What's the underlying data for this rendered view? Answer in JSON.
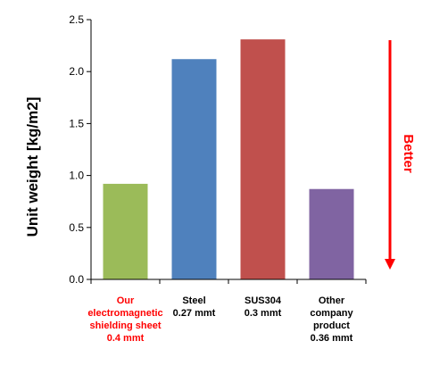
{
  "chart_data": {
    "type": "bar",
    "ylabel": "Unit weight [kg/m2]",
    "ylim": [
      0,
      2.5
    ],
    "yticks": [
      "0.0",
      "0.5",
      "1.0",
      "1.5",
      "2.0",
      "2.5"
    ],
    "grid": false,
    "categories": [
      {
        "lines": [
          "Our",
          "electromagnetic",
          "shielding sheet",
          "0.4 mmt"
        ],
        "label_color": "#ff0000",
        "value": 0.92,
        "color": "#9bbb59"
      },
      {
        "lines": [
          "Steel",
          "0.27 mmt"
        ],
        "label_color": "#000000",
        "value": 2.12,
        "color": "#4f81bd"
      },
      {
        "lines": [
          "SUS304",
          "0.3 mmt"
        ],
        "label_color": "#000000",
        "value": 2.31,
        "color": "#c0504d"
      },
      {
        "lines": [
          "Other",
          "company",
          "product",
          "0.36 mmt"
        ],
        "label_color": "#000000",
        "value": 0.87,
        "color": "#8064a2"
      }
    ],
    "annotation": {
      "text": "Better",
      "color": "#ff0000",
      "direction": "down"
    }
  }
}
